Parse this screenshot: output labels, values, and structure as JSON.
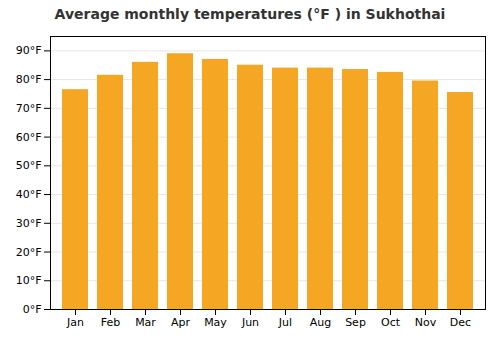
{
  "chart_data": {
    "type": "bar",
    "title": "Average monthly temperatures (°F ) in Sukhothai",
    "categories": [
      "Jan",
      "Feb",
      "Mar",
      "Apr",
      "May",
      "Jun",
      "Jul",
      "Aug",
      "Sep",
      "Oct",
      "Nov",
      "Dec"
    ],
    "values": [
      76.5,
      81.5,
      86.0,
      89.0,
      87.0,
      85.0,
      84.0,
      84.0,
      83.5,
      82.5,
      79.5,
      75.5
    ],
    "color": "#F5A623",
    "ylim": [
      0,
      95
    ],
    "yticks": [
      {
        "value": 0,
        "label": "0°F"
      },
      {
        "value": 10,
        "label": "10°F"
      },
      {
        "value": 20,
        "label": "20°F"
      },
      {
        "value": 30,
        "label": "30°F"
      },
      {
        "value": 40,
        "label": "40°F"
      },
      {
        "value": 50,
        "label": "50°F"
      },
      {
        "value": 60,
        "label": "60°F"
      },
      {
        "value": 70,
        "label": "70°F"
      },
      {
        "value": 80,
        "label": "80°F"
      },
      {
        "value": 90,
        "label": "90°F"
      }
    ],
    "grid": true
  }
}
